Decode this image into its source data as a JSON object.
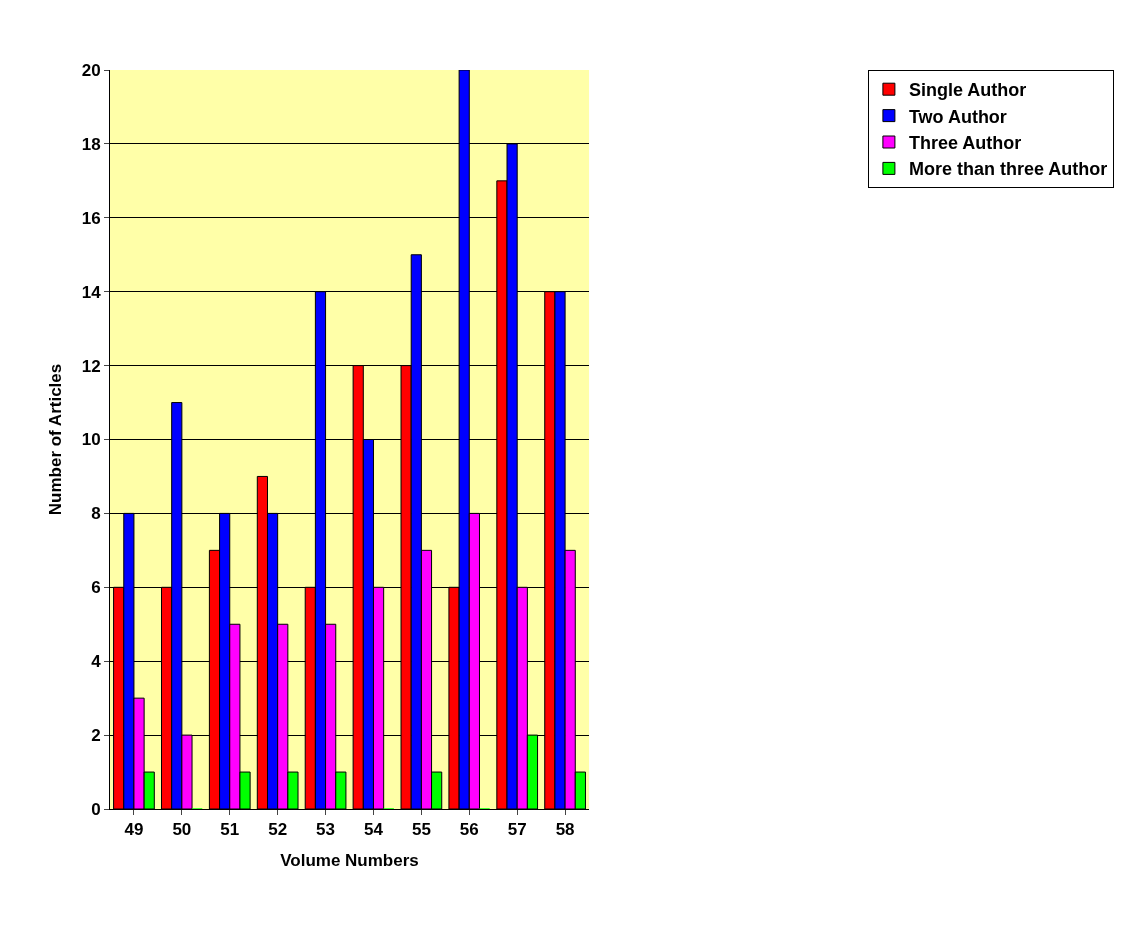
{
  "chart_data": {
    "type": "bar",
    "xlabel": "Volume Numbers",
    "ylabel": "Number of Articles",
    "categories": [
      "49",
      "50",
      "51",
      "52",
      "53",
      "54",
      "55",
      "56",
      "57",
      "58"
    ],
    "series": [
      {
        "name": "Single Author",
        "color": "#ff0000",
        "values": [
          6,
          6,
          7,
          9,
          6,
          12,
          12,
          6,
          17,
          14
        ]
      },
      {
        "name": "Two Author",
        "color": "#0000ff",
        "values": [
          8,
          11,
          8,
          8,
          14,
          10,
          15,
          20,
          18,
          14
        ]
      },
      {
        "name": "Three Author",
        "color": "#ff00ff",
        "values": [
          3,
          2,
          5,
          5,
          5,
          6,
          7,
          8,
          6,
          7
        ]
      },
      {
        "name": "More than three Author",
        "color": "#00ff00",
        "values": [
          1,
          0,
          1,
          1,
          1,
          0,
          1,
          0,
          2,
          1
        ]
      }
    ],
    "ylim": [
      0,
      20
    ],
    "yticks": [
      0,
      2,
      4,
      6,
      8,
      10,
      12,
      14,
      16,
      18,
      20
    ],
    "grid": "y",
    "legend": "top right"
  }
}
